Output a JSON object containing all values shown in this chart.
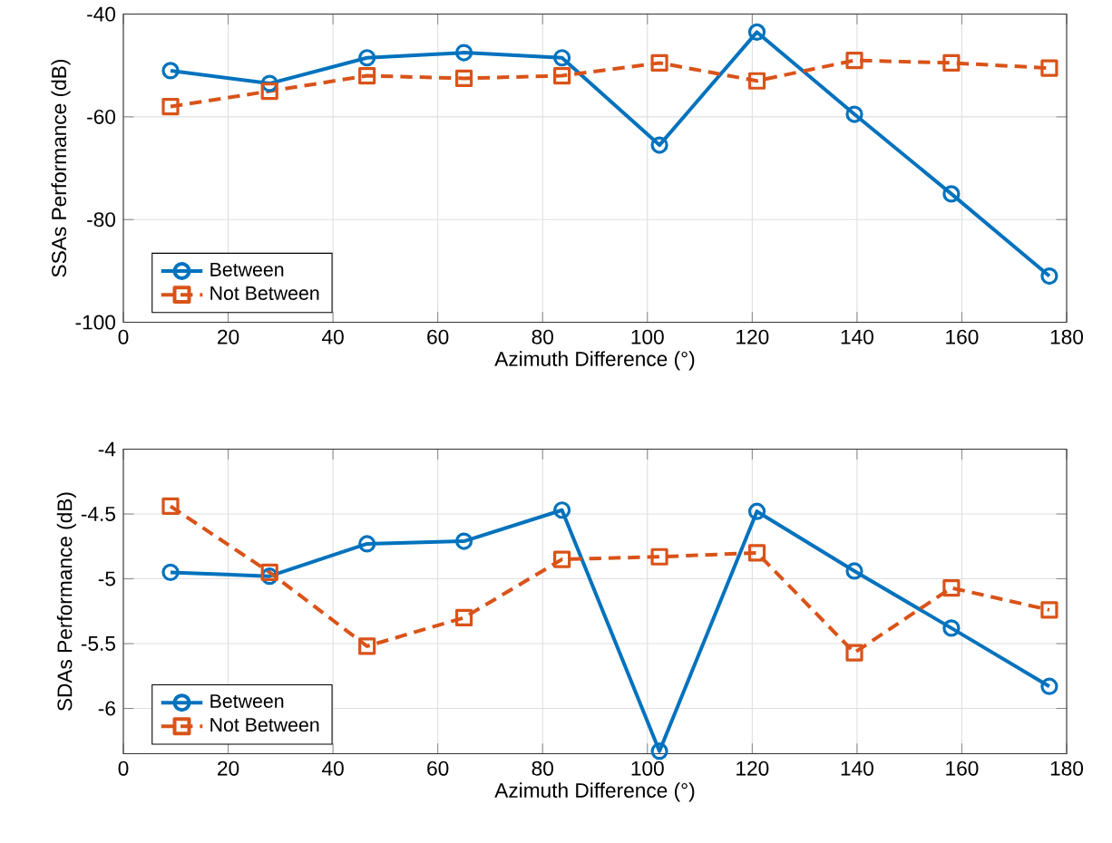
{
  "chart_data": [
    {
      "type": "line",
      "x": [
        9,
        27.9,
        46.5,
        65,
        83.7,
        102.3,
        120.9,
        139.5,
        158,
        176.7
      ],
      "xlabel": "Azimuth Difference (°)",
      "ylabel": "SSAs Performance (dB)",
      "xlim": [
        0,
        180
      ],
      "ylim": [
        -100,
        -40
      ],
      "xticks": [
        0,
        20,
        40,
        60,
        80,
        100,
        120,
        140,
        160,
        180
      ],
      "yticks": [
        -100,
        -80,
        -60,
        -40
      ],
      "grid": true,
      "legend": "bottom left",
      "series": [
        {
          "name": "Between",
          "color": "#0072bd",
          "marker": "circle",
          "line_style": "solid",
          "values": [
            -51,
            -53.5,
            -48.5,
            -47.5,
            -48.5,
            -65.5,
            -43.5,
            -59.5,
            -75,
            -91
          ]
        },
        {
          "name": "Not Between",
          "color": "#d95319",
          "marker": "square",
          "line_style": "dashed",
          "values": [
            -58,
            -55,
            -52,
            -52.5,
            -52,
            -49.5,
            -53,
            -49,
            -49.5,
            -50.5
          ]
        }
      ]
    },
    {
      "type": "line",
      "x": [
        9,
        27.9,
        46.5,
        65,
        83.7,
        102.3,
        120.9,
        139.5,
        158,
        176.7
      ],
      "xlabel": "Azimuth Difference (°)",
      "ylabel": "SDAs Performance (dB)",
      "xlim": [
        0,
        180
      ],
      "ylim": [
        -6.35,
        -4
      ],
      "xticks": [
        0,
        20,
        40,
        60,
        80,
        100,
        120,
        140,
        160,
        180
      ],
      "yticks": [
        -6,
        -5.5,
        -5,
        -4.5,
        -4
      ],
      "grid": true,
      "legend": "bottom left",
      "series": [
        {
          "name": "Between",
          "color": "#0072bd",
          "marker": "circle",
          "line_style": "solid",
          "values": [
            -4.95,
            -4.98,
            -4.73,
            -4.71,
            -4.47,
            -6.33,
            -4.48,
            -4.94,
            -5.38,
            -5.83
          ]
        },
        {
          "name": "Not Between",
          "color": "#d95319",
          "marker": "square",
          "line_style": "dashed",
          "values": [
            -4.44,
            -4.95,
            -5.52,
            -5.3,
            -4.85,
            -4.83,
            -4.8,
            -5.57,
            -5.07,
            -5.24
          ]
        }
      ]
    }
  ]
}
